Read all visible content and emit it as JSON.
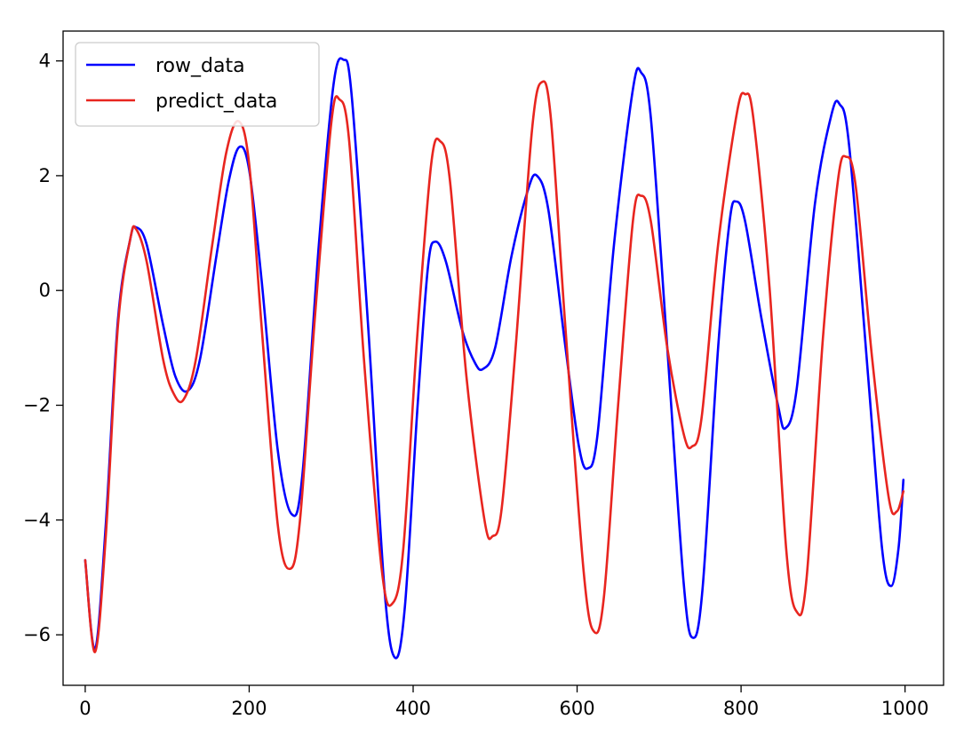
{
  "chart_data": {
    "type": "line",
    "title": "",
    "xlabel": "",
    "ylabel": "",
    "xlim": [
      -27,
      1047
    ],
    "ylim": [
      -6.88,
      4.52
    ],
    "grid": false,
    "legend_position": "top-left",
    "xticks": [
      0,
      200,
      400,
      600,
      800,
      1000
    ],
    "yticks": [
      4,
      2,
      0,
      -2,
      -4,
      -6
    ],
    "xtick_labels": [
      "0",
      "200",
      "400",
      "600",
      "800",
      "1000"
    ],
    "ytick_labels": [
      "4",
      "2",
      "0",
      "−2",
      "−4",
      "−6"
    ],
    "series": [
      {
        "name": "row_data",
        "color": "#0000ff",
        "points": [
          [
            0,
            -4.7
          ],
          [
            12,
            -6.25
          ],
          [
            25,
            -4.1
          ],
          [
            40,
            -0.5
          ],
          [
            55,
            0.9
          ],
          [
            62,
            1.1
          ],
          [
            75,
            0.8
          ],
          [
            95,
            -0.6
          ],
          [
            110,
            -1.5
          ],
          [
            125,
            -1.75
          ],
          [
            140,
            -1.2
          ],
          [
            160,
            0.6
          ],
          [
            175,
            1.9
          ],
          [
            188,
            2.5
          ],
          [
            200,
            2.1
          ],
          [
            215,
            0.2
          ],
          [
            235,
            -2.8
          ],
          [
            252,
            -3.9
          ],
          [
            265,
            -3.2
          ],
          [
            285,
            0.8
          ],
          [
            303,
            3.6
          ],
          [
            315,
            4.02
          ],
          [
            325,
            3.4
          ],
          [
            345,
            -0.6
          ],
          [
            365,
            -5.2
          ],
          [
            378,
            -6.4
          ],
          [
            390,
            -5.5
          ],
          [
            405,
            -2.1
          ],
          [
            418,
            0.4
          ],
          [
            427,
            0.85
          ],
          [
            440,
            0.5
          ],
          [
            460,
            -0.7
          ],
          [
            475,
            -1.25
          ],
          [
            485,
            -1.37
          ],
          [
            500,
            -1.0
          ],
          [
            520,
            0.6
          ],
          [
            540,
            1.75
          ],
          [
            551,
            2.0
          ],
          [
            565,
            1.4
          ],
          [
            585,
            -0.9
          ],
          [
            602,
            -2.7
          ],
          [
            613,
            -3.1
          ],
          [
            625,
            -2.5
          ],
          [
            645,
            0.8
          ],
          [
            668,
            3.5
          ],
          [
            678,
            3.8
          ],
          [
            690,
            3.0
          ],
          [
            710,
            -1.0
          ],
          [
            730,
            -5.1
          ],
          [
            741,
            -6.05
          ],
          [
            753,
            -5.2
          ],
          [
            772,
            -1.0
          ],
          [
            786,
            1.2
          ],
          [
            794,
            1.55
          ],
          [
            805,
            1.2
          ],
          [
            825,
            -0.5
          ],
          [
            845,
            -2.0
          ],
          [
            854,
            -2.4
          ],
          [
            868,
            -1.7
          ],
          [
            890,
            1.5
          ],
          [
            910,
            3.05
          ],
          [
            920,
            3.25
          ],
          [
            932,
            2.5
          ],
          [
            955,
            -1.5
          ],
          [
            972,
            -4.5
          ],
          [
            983,
            -5.15
          ],
          [
            992,
            -4.5
          ],
          [
            998,
            -3.3
          ]
        ]
      },
      {
        "name": "predict_data",
        "color": "#e8251f",
        "points": [
          [
            0,
            -4.7
          ],
          [
            12,
            -6.3
          ],
          [
            25,
            -4.3
          ],
          [
            40,
            -0.6
          ],
          [
            55,
            0.9
          ],
          [
            62,
            1.07
          ],
          [
            75,
            0.5
          ],
          [
            95,
            -1.2
          ],
          [
            108,
            -1.8
          ],
          [
            120,
            -1.9
          ],
          [
            135,
            -1.2
          ],
          [
            155,
            0.8
          ],
          [
            172,
            2.4
          ],
          [
            187,
            2.95
          ],
          [
            200,
            2.2
          ],
          [
            215,
            -0.6
          ],
          [
            235,
            -4.1
          ],
          [
            250,
            -4.85
          ],
          [
            262,
            -4.0
          ],
          [
            280,
            -0.5
          ],
          [
            300,
            2.9
          ],
          [
            310,
            3.33
          ],
          [
            322,
            2.6
          ],
          [
            340,
            -1.2
          ],
          [
            362,
            -4.9
          ],
          [
            375,
            -5.45
          ],
          [
            388,
            -4.5
          ],
          [
            405,
            -0.8
          ],
          [
            422,
            2.2
          ],
          [
            433,
            2.6
          ],
          [
            445,
            1.9
          ],
          [
            465,
            -1.5
          ],
          [
            487,
            -4.0
          ],
          [
            497,
            -4.28
          ],
          [
            508,
            -3.8
          ],
          [
            525,
            -1.0
          ],
          [
            545,
            2.8
          ],
          [
            557,
            3.63
          ],
          [
            568,
            3.0
          ],
          [
            585,
            -0.5
          ],
          [
            608,
            -4.9
          ],
          [
            621,
            -5.95
          ],
          [
            633,
            -5.3
          ],
          [
            650,
            -2.0
          ],
          [
            668,
            1.2
          ],
          [
            678,
            1.65
          ],
          [
            690,
            1.2
          ],
          [
            710,
            -1.0
          ],
          [
            730,
            -2.5
          ],
          [
            740,
            -2.72
          ],
          [
            752,
            -2.2
          ],
          [
            772,
            0.8
          ],
          [
            795,
            3.1
          ],
          [
            805,
            3.42
          ],
          [
            815,
            3.0
          ],
          [
            835,
            0.0
          ],
          [
            855,
            -4.5
          ],
          [
            868,
            -5.6
          ],
          [
            880,
            -5.0
          ],
          [
            900,
            -0.8
          ],
          [
            918,
            1.9
          ],
          [
            928,
            2.33
          ],
          [
            940,
            1.8
          ],
          [
            960,
            -1.2
          ],
          [
            980,
            -3.6
          ],
          [
            990,
            -3.85
          ],
          [
            998,
            -3.5
          ]
        ]
      }
    ]
  }
}
